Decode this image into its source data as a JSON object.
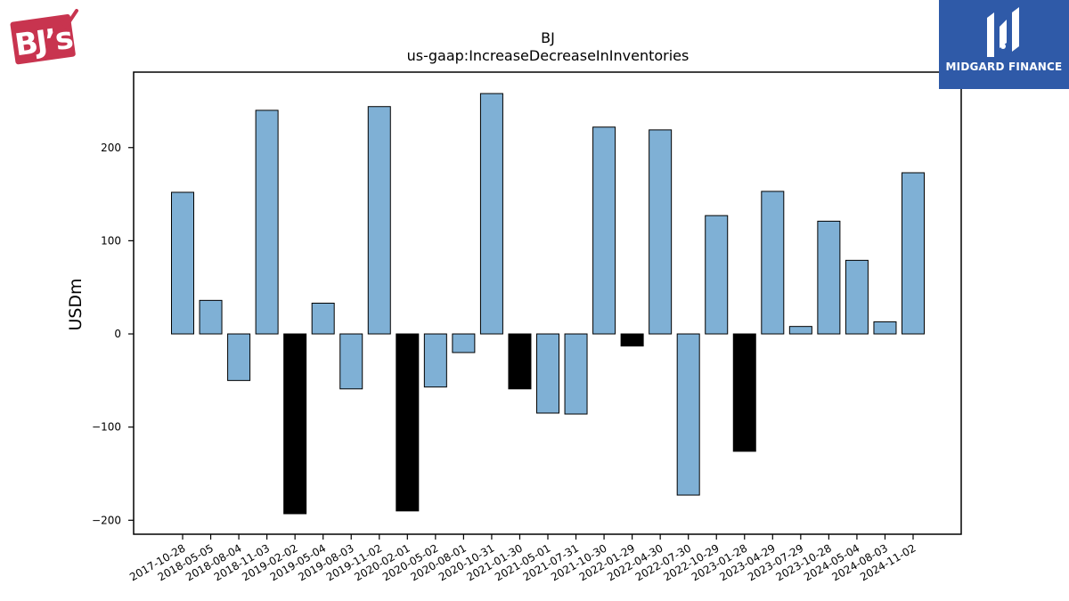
{
  "brand": {
    "logo_text": "BJ's",
    "logo_color": "#c8344f"
  },
  "watermark": {
    "text": "MIDGARD FINANCE",
    "background": "#2f5aa8"
  },
  "chart_data": {
    "type": "bar",
    "title": "BJ",
    "subtitle": "us-gaap:IncreaseDecreaseInInventories",
    "xlabel": "",
    "ylabel": "USDm",
    "ylim": [
      -215,
      281
    ],
    "yticks": [
      -200,
      -100,
      0,
      100,
      200
    ],
    "ytick_labels": [
      "−200",
      "−100",
      "0",
      "100",
      "200"
    ],
    "grid": false,
    "categories": [
      "2017-10-28",
      "2018-05-05",
      "2018-08-04",
      "2018-11-03",
      "2019-02-02",
      "2019-05-04",
      "2019-08-03",
      "2019-11-02",
      "2020-02-01",
      "2020-05-02",
      "2020-08-01",
      "2020-10-31",
      "2021-01-30",
      "2021-05-01",
      "2021-07-31",
      "2021-10-30",
      "2022-01-29",
      "2022-04-30",
      "2022-07-30",
      "2022-10-29",
      "2023-01-28",
      "2023-04-29",
      "2023-07-29",
      "2023-10-28",
      "2024-05-04",
      "2024-08-03",
      "2024-11-02"
    ],
    "values": [
      152,
      36,
      -50,
      240,
      -193,
      33,
      -59,
      244,
      -190,
      -57,
      -20,
      258,
      -59,
      -85,
      -86,
      222,
      -13,
      219,
      -173,
      127,
      -126,
      153,
      8,
      121,
      79,
      13,
      173
    ],
    "bar_colors": [
      "#7fb0d5",
      "#7fb0d5",
      "#7fb0d5",
      "#7fb0d5",
      "#000000",
      "#7fb0d5",
      "#7fb0d5",
      "#7fb0d5",
      "#000000",
      "#7fb0d5",
      "#7fb0d5",
      "#7fb0d5",
      "#000000",
      "#7fb0d5",
      "#7fb0d5",
      "#7fb0d5",
      "#000000",
      "#7fb0d5",
      "#7fb0d5",
      "#7fb0d5",
      "#000000",
      "#7fb0d5",
      "#7fb0d5",
      "#7fb0d5",
      "#7fb0d5",
      "#7fb0d5",
      "#7fb0d5"
    ],
    "colors": {
      "bar": "#7fb0d5",
      "bar_highlight": "#000000",
      "edge": "#000000"
    }
  }
}
